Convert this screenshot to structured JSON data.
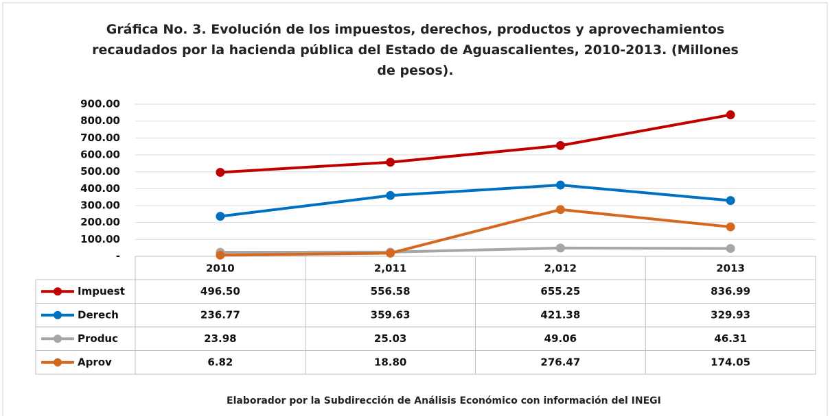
{
  "chart_data": {
    "type": "line",
    "title": "Gráfica No. 3. Evolución de los impuestos, derechos, productos y aprovechamientos recaudados por la hacienda pública del Estado de Aguascalientes, 2010-2013. (Millones de pesos).",
    "note": "Elaborador por la Subdirección de Análisis Económico con información del INEGI",
    "categories": [
      "2010",
      "2,011",
      "2,012",
      "2013"
    ],
    "series": [
      {
        "name": "Impuest",
        "color": "#c00000",
        "values": [
          496.5,
          556.58,
          655.25,
          836.99
        ],
        "value_labels": [
          "496.50",
          "556.58",
          "655.25",
          "836.99"
        ]
      },
      {
        "name": "Derech",
        "color": "#0070c0",
        "values": [
          236.77,
          359.63,
          421.38,
          329.93
        ],
        "value_labels": [
          "236.77",
          "359.63",
          "421.38",
          "329.93"
        ]
      },
      {
        "name": "Produc",
        "color": "#a6a6a6",
        "values": [
          23.98,
          25.03,
          49.06,
          46.31
        ],
        "value_labels": [
          "23.98",
          "25.03",
          "49.06",
          "46.31"
        ]
      },
      {
        "name": "Aprov",
        "color": "#d4691e",
        "values": [
          6.82,
          18.8,
          276.47,
          174.05
        ],
        "value_labels": [
          "6.82",
          "18.80",
          "276.47",
          "174.05"
        ]
      }
    ],
    "ylim": [
      0,
      900
    ],
    "yticks": [
      {
        "value": 0,
        "label": "-"
      },
      {
        "value": 100,
        "label": "100.00"
      },
      {
        "value": 200,
        "label": "200.00"
      },
      {
        "value": 300,
        "label": "300.00"
      },
      {
        "value": 400,
        "label": "400.00"
      },
      {
        "value": 500,
        "label": "500.00"
      },
      {
        "value": 600,
        "label": "600.00"
      },
      {
        "value": 700,
        "label": "700.00"
      },
      {
        "value": 800,
        "label": "800.00"
      },
      {
        "value": 900,
        "label": "900.00"
      }
    ],
    "grid": true
  }
}
